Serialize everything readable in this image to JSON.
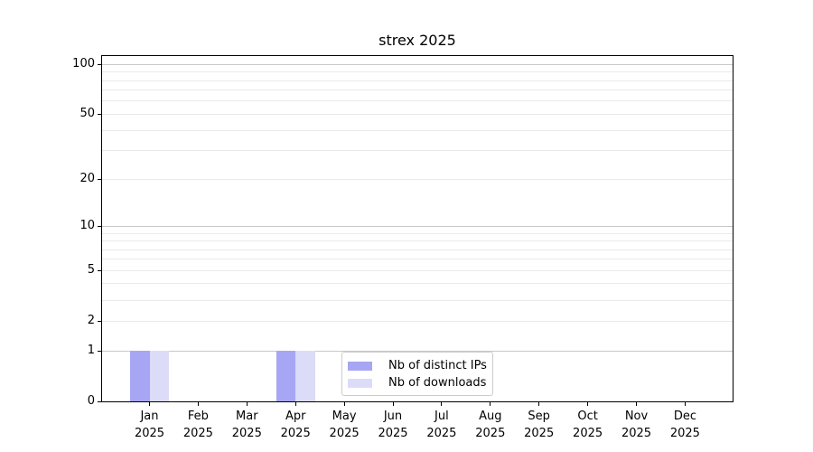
{
  "chart_data": {
    "type": "bar",
    "title": "strex 2025",
    "categories": [
      "Jan 2025",
      "Feb 2025",
      "Mar 2025",
      "Apr 2025",
      "May 2025",
      "Jun 2025",
      "Jul 2025",
      "Aug 2025",
      "Sep 2025",
      "Oct 2025",
      "Nov 2025",
      "Dec 2025"
    ],
    "x_ticks": [
      {
        "month": "Jan",
        "year": "2025"
      },
      {
        "month": "Feb",
        "year": "2025"
      },
      {
        "month": "Mar",
        "year": "2025"
      },
      {
        "month": "Apr",
        "year": "2025"
      },
      {
        "month": "May",
        "year": "2025"
      },
      {
        "month": "Jun",
        "year": "2025"
      },
      {
        "month": "Jul",
        "year": "2025"
      },
      {
        "month": "Aug",
        "year": "2025"
      },
      {
        "month": "Sep",
        "year": "2025"
      },
      {
        "month": "Oct",
        "year": "2025"
      },
      {
        "month": "Nov",
        "year": "2025"
      },
      {
        "month": "Dec",
        "year": "2025"
      }
    ],
    "series": [
      {
        "name": "Nb of distinct IPs",
        "color": "#a6a6f4",
        "values": [
          1,
          0,
          0,
          1,
          0,
          0,
          0,
          0,
          0,
          0,
          0,
          0
        ]
      },
      {
        "name": "Nb of downloads",
        "color": "#dcdcf9",
        "values": [
          1,
          0,
          0,
          1,
          0,
          0,
          0,
          0,
          0,
          0,
          0,
          0
        ]
      }
    ],
    "yscale": "log10(1+x)",
    "ylim": [
      0,
      112
    ],
    "xlabel": "",
    "ylabel": "",
    "y_ticks": [
      {
        "label": "100",
        "value": 100
      },
      {
        "label": "50",
        "value": 50
      },
      {
        "label": "20",
        "value": 20
      },
      {
        "label": "10",
        "value": 10
      },
      {
        "label": "5",
        "value": 5
      },
      {
        "label": "2",
        "value": 2
      },
      {
        "label": "1",
        "value": 1
      },
      {
        "label": "0",
        "value": 0
      }
    ],
    "y_major_gridlines": [
      1,
      10,
      100
    ],
    "y_minor_gridlines": [
      2,
      3,
      4,
      5,
      6,
      7,
      8,
      9,
      20,
      30,
      40,
      50,
      60,
      70,
      80,
      90
    ],
    "grid": true,
    "legend": {
      "position": "inside-bottom-center",
      "items": [
        "Nb of distinct IPs",
        "Nb of downloads"
      ]
    },
    "colors": {
      "bar_distinct_ips": "#a6a6f4",
      "bar_downloads": "#dcdcf9",
      "major_grid": "#c8c8c8",
      "minor_grid": "#eaeaea",
      "axis": "#000000",
      "text": "#000000",
      "background": "#ffffff",
      "legend_border": "#cccccc"
    }
  }
}
